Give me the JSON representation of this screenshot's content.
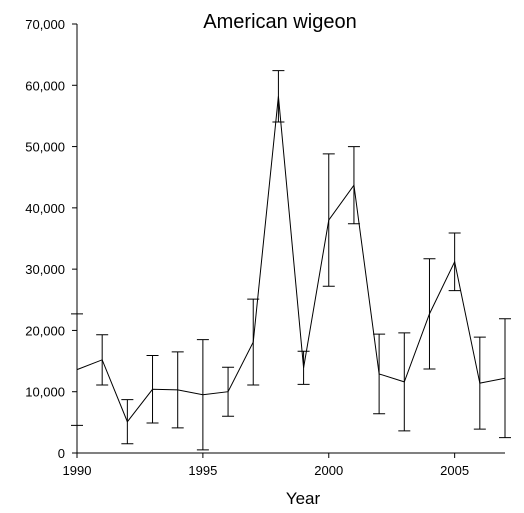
{
  "chart_data": {
    "type": "line",
    "title": "American wigeon",
    "x_label": "Year",
    "x": [
      1990,
      1991,
      1992,
      1993,
      1994,
      1995,
      1996,
      1997,
      1998,
      1999,
      2000,
      2001,
      2002,
      2003,
      2004,
      2005,
      2006,
      2007
    ],
    "series": [
      {
        "color": "#000000",
        "values": [
          13600,
          15200,
          5100,
          10400,
          10300,
          9500,
          10000,
          18100,
          58200,
          13900,
          38000,
          43700,
          12900,
          11600,
          22700,
          31200,
          11400,
          12200
        ],
        "errors": [
          9100,
          4100,
          3600,
          5500,
          6200,
          9000,
          4000,
          7000,
          4200,
          2700,
          10800,
          6300,
          6500,
          8000,
          9000,
          4700,
          7500,
          9700
        ]
      }
    ],
    "xlim": [
      1990,
      2007
    ],
    "xticks": [
      1990,
      1995,
      2000,
      2005
    ],
    "ylim": [
      0,
      70000
    ],
    "yticks": [
      0,
      {
        "value": 10000,
        "label": "10,000"
      },
      {
        "value": 20000,
        "label": "20,000"
      },
      {
        "value": 30000,
        "label": "30,000"
      },
      {
        "value": 40000,
        "label": "40,000"
      },
      {
        "value": 50000,
        "label": "50,000"
      },
      {
        "value": 60000,
        "label": "60,000"
      },
      {
        "value": 70000,
        "label": "70,000"
      }
    ]
  }
}
